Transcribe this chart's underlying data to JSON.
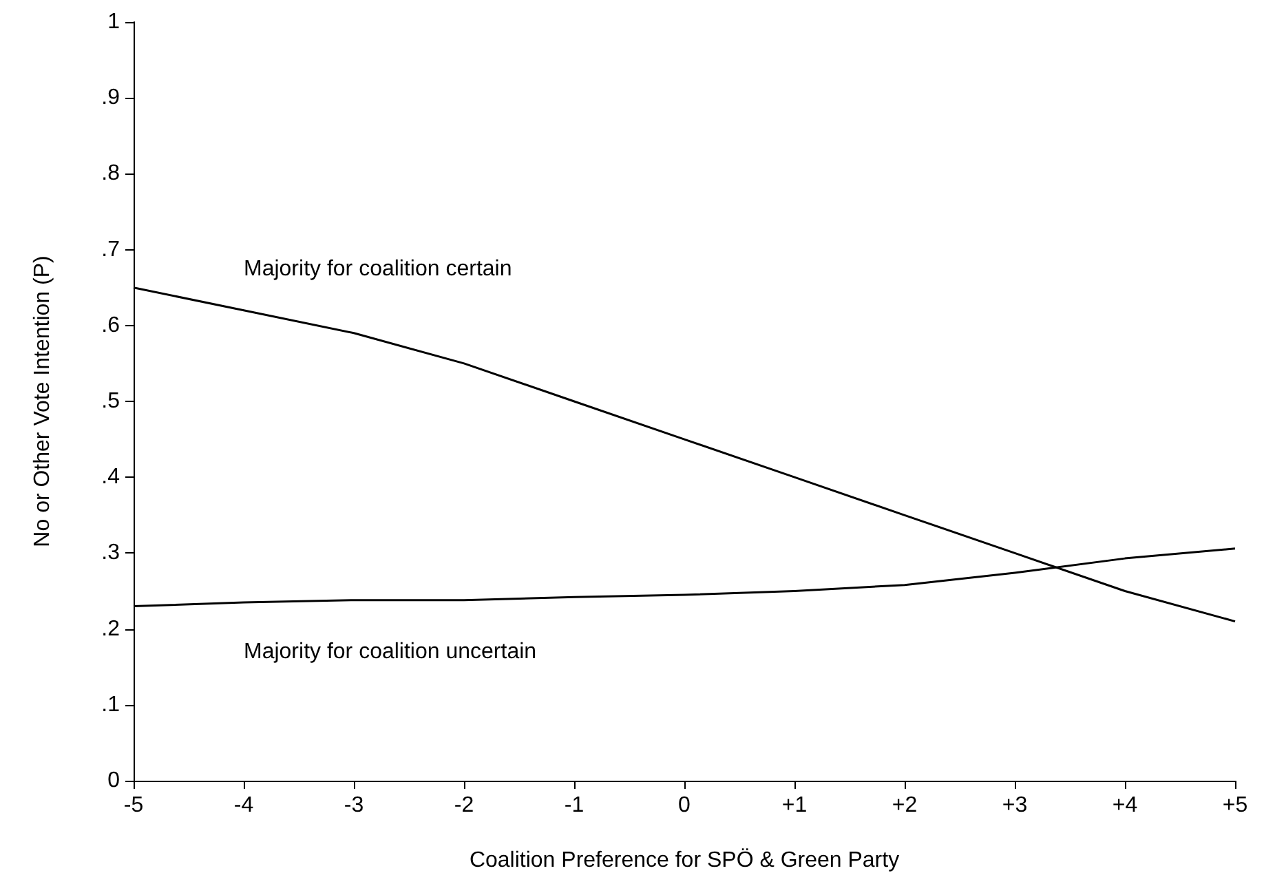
{
  "chart_data": {
    "type": "line",
    "xlabel": "Coalition Preference for SPÖ & Green Party",
    "ylabel": "No or Other Vote Intention (P)",
    "x": [
      -5,
      -4,
      -3,
      -2,
      -1,
      0,
      1,
      2,
      3,
      4,
      5
    ],
    "series": [
      {
        "name": "Majority for coalition certain",
        "color": "#000000",
        "values": [
          0.65,
          0.62,
          0.59,
          0.55,
          0.5,
          0.45,
          0.4,
          0.35,
          0.3,
          0.25,
          0.21
        ]
      },
      {
        "name": "Majority for coalition uncertain",
        "color": "#000000",
        "values": [
          0.23,
          0.235,
          0.238,
          0.238,
          0.242,
          0.245,
          0.25,
          0.258,
          0.274,
          0.293,
          0.306
        ]
      }
    ],
    "xlim": [
      -5,
      5
    ],
    "xticks": [
      -5,
      -4,
      -3,
      -2,
      -1,
      0,
      {
        "value": 1,
        "label": "+1"
      },
      {
        "value": 2,
        "label": "+2"
      },
      {
        "value": 3,
        "label": "+3"
      },
      {
        "value": 4,
        "label": "+4"
      },
      {
        "value": 5,
        "label": "+5"
      }
    ],
    "ylim": [
      0,
      1
    ],
    "yticks": [
      0,
      {
        "value": 0.1,
        "label": ".1"
      },
      {
        "value": 0.2,
        "label": ".2"
      },
      {
        "value": 0.3,
        "label": ".3"
      },
      {
        "value": 0.4,
        "label": ".4"
      },
      {
        "value": 0.5,
        "label": ".5"
      },
      {
        "value": 0.6,
        "label": ".6"
      },
      {
        "value": 0.7,
        "label": ".7"
      },
      {
        "value": 0.8,
        "label": ".8"
      },
      {
        "value": 0.9,
        "label": ".9"
      },
      1
    ],
    "grid": false,
    "legend": false,
    "marker": "none",
    "line_style": "solid"
  }
}
